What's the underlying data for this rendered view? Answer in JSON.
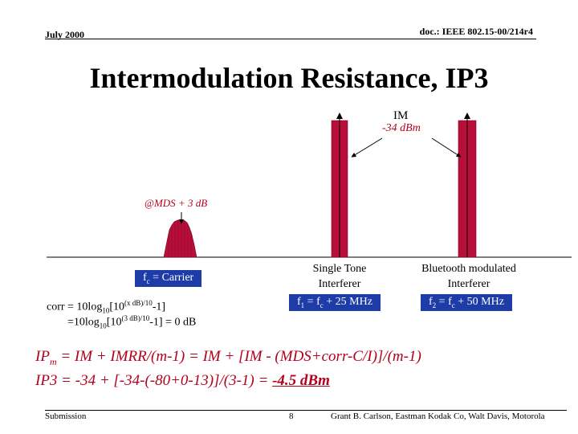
{
  "header": {
    "date": "July 2000",
    "doc_id": "doc.: IEEE 802.15-00/214r4"
  },
  "title": "Intermodulation Resistance, IP3",
  "diagram": {
    "im_label": "IM",
    "im_level": "-34 dBm",
    "carrier_level": "@MDS + 3 dB",
    "carrier_box": {
      "text": "f",
      "sub": "c",
      "rest": " = Carrier"
    },
    "single_tone_label": [
      "Single Tone",
      "Interferer"
    ],
    "f1_box": {
      "f": "f",
      "sub1": "1",
      "mid": " = f",
      "sub2": "c",
      "rest": " + 25 MHz"
    },
    "bluetooth_label": [
      "Bluetooth modulated",
      "Interferer"
    ],
    "f2_box": {
      "f": "f",
      "sub1": "2",
      "mid": " = f",
      "sub2": "c",
      "rest": " + 50 MHz"
    },
    "corr_line1": {
      "a": "corr = 10log",
      "sub": "10",
      "b": "[10",
      "sup": "(x dB)/10",
      "c": "-1]"
    },
    "corr_line2": {
      "a": "=10log",
      "sub": "10",
      "b": "[10",
      "sup": "(3 dB)/10",
      "c": "-1] = 0 dB"
    },
    "colors": {
      "bar": "#b80f3a",
      "box": "#1e3ca8",
      "label_red": "#b3001b"
    }
  },
  "formula": {
    "line1": "IPm = IM + IMRR/(m-1) = IM + [IM - (MDS+corr-C/I)]/(m-1)",
    "line1_parts": {
      "a": "IP",
      "sub": "m",
      "b": " = IM + IMRR/(m-1) = IM + [IM - (MDS+corr-C/I)]/(m-1)"
    },
    "line2_prefix": "IP3 = -34 + [-34-(-80+0-13)]/(3-1) = ",
    "line2_result": "-4.5 dBm"
  },
  "footer": {
    "left": "Submission",
    "page": "8",
    "author": "Grant B. Carlson, Eastman Kodak Co, Walt Davis, Motorola"
  }
}
